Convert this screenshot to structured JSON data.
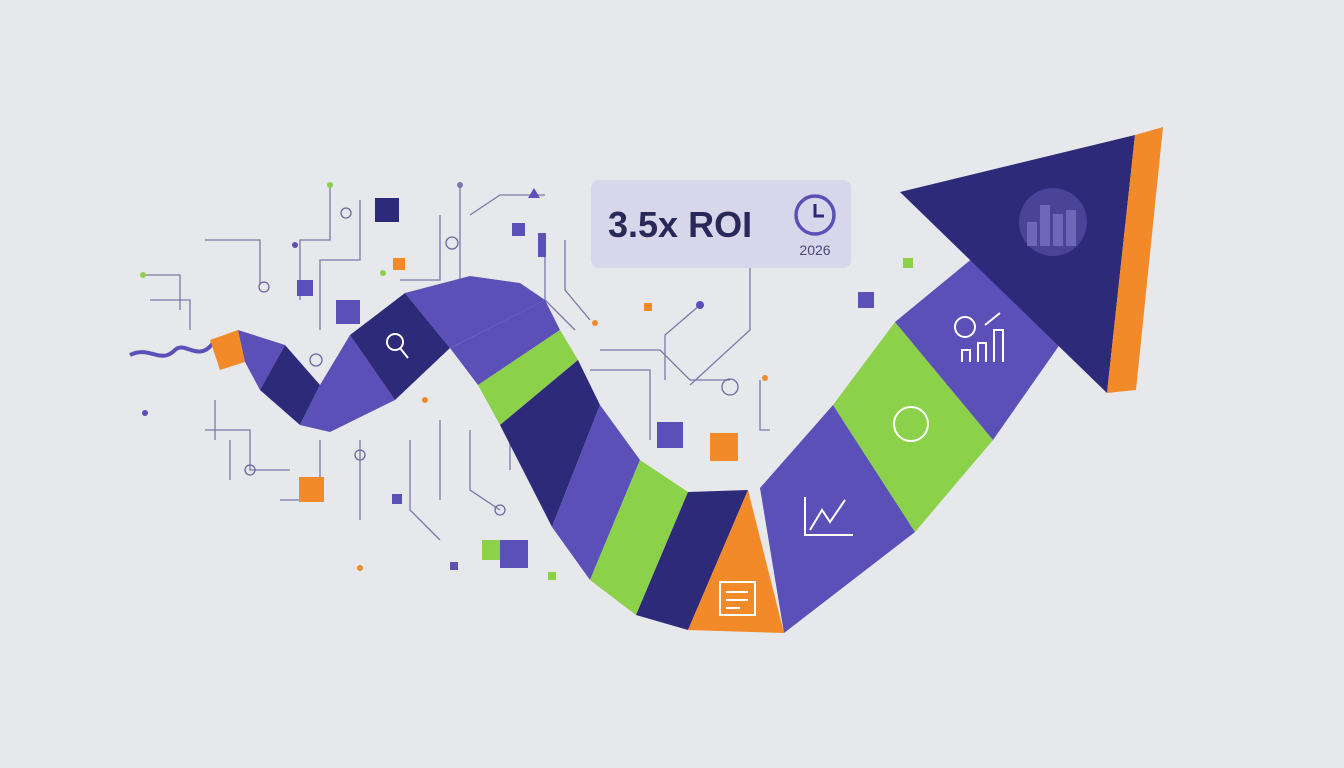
{
  "badge": {
    "title": "3.5x ROI",
    "year": "2026"
  }
}
